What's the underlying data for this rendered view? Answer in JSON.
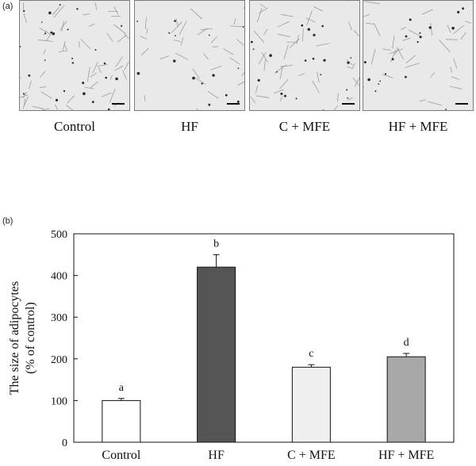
{
  "panel_a": {
    "tag": "(a)",
    "images": [
      {
        "label": "Control",
        "density": 1.0
      },
      {
        "label": "HF",
        "density": 0.55
      },
      {
        "label": "C + MFE",
        "density": 0.8
      },
      {
        "label": "HF + MFE",
        "density": 0.6
      }
    ]
  },
  "panel_b": {
    "tag": "(b)"
  },
  "chart_data": {
    "type": "bar",
    "categories": [
      "Control",
      "HF",
      "C + MFE",
      "HF + MFE"
    ],
    "values": [
      100,
      420,
      180,
      205
    ],
    "errors": [
      5,
      30,
      6,
      8
    ],
    "significance_letters": [
      "a",
      "b",
      "c",
      "d"
    ],
    "bar_colors": [
      "#ffffff",
      "#555555",
      "#f0f0f0",
      "#a8a8a8"
    ],
    "title": "",
    "xlabel": "",
    "ylabel_line1": "The size of adipocytes",
    "ylabel_line2": "(% of control)",
    "ylim": [
      0,
      500
    ],
    "yticks": [
      0,
      100,
      200,
      300,
      400,
      500
    ],
    "grid": false
  }
}
